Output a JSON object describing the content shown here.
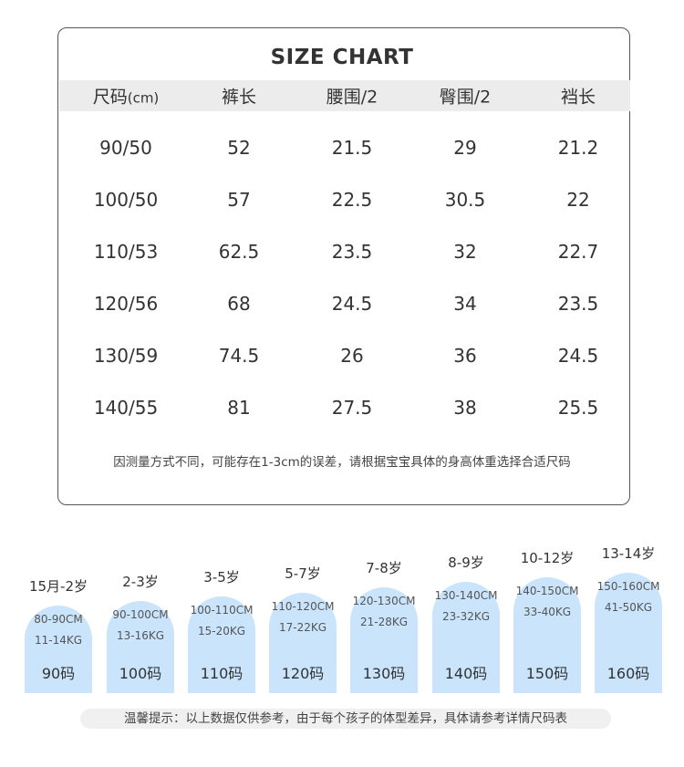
{
  "table": {
    "title": "SIZE CHART",
    "headers": [
      "尺码",
      "裤长",
      "腰围/2",
      "臀围/2",
      "裆长"
    ],
    "header_unit": "(cm)",
    "rows": [
      [
        "90/50",
        "52",
        "21.5",
        "29",
        "21.2"
      ],
      [
        "100/50",
        "57",
        "22.5",
        "30.5",
        "22"
      ],
      [
        "110/53",
        "62.5",
        "23.5",
        "32",
        "22.7"
      ],
      [
        "120/56",
        "68",
        "24.5",
        "34",
        "23.5"
      ],
      [
        "130/59",
        "74.5",
        "26",
        "36",
        "24.5"
      ],
      [
        "140/55",
        "81",
        "27.5",
        "38",
        "25.5"
      ]
    ],
    "note": "因测量方式不同，可能存在1-3cm的误差，请根据宝宝具体的身高体重选择合适尺码"
  },
  "guide": [
    {
      "age": "15月-2岁",
      "height": "80-90CM",
      "weight": "11-14KG",
      "size": "90码"
    },
    {
      "age": "2-3岁",
      "height": "90-100CM",
      "weight": "13-16KG",
      "size": "100码"
    },
    {
      "age": "3-5岁",
      "height": "100-110CM",
      "weight": "15-20KG",
      "size": "110码"
    },
    {
      "age": "5-7岁",
      "height": "110-120CM",
      "weight": "17-22KG",
      "size": "120码"
    },
    {
      "age": "7-8岁",
      "height": "120-130CM",
      "weight": "21-28KG",
      "size": "130码"
    },
    {
      "age": "8-9岁",
      "height": "130-140CM",
      "weight": "23-32KG",
      "size": "140码"
    },
    {
      "age": "10-12岁",
      "height": "140-150CM",
      "weight": "33-40KG",
      "size": "150码"
    },
    {
      "age": "13-14岁",
      "height": "150-160CM",
      "weight": "41-50KG",
      "size": "160码"
    }
  ],
  "tip": "温馨提示：以上数据仅供参考，由于每个孩子的体型差异，具体请参考详情尺码表",
  "colors": {
    "header_bg": "#ececec",
    "tab_bg": "#c9e4fb",
    "tip_bg": "#f0f0f0",
    "border": "#555555"
  }
}
